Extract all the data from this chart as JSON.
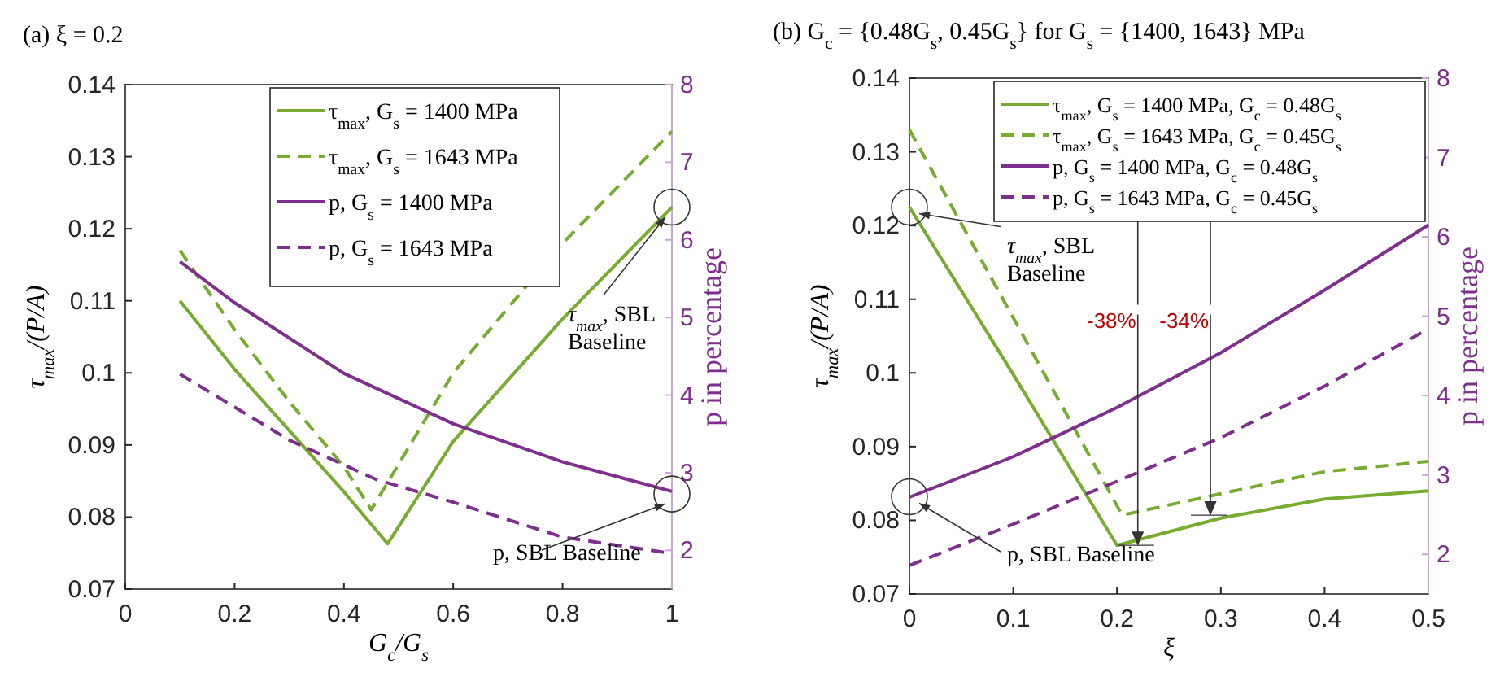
{
  "chart_data": [
    {
      "type": "line",
      "title": "(a) ξ = 0.2",
      "xlabel": "G$_{c}$/G$_{s}$",
      "ylabel": "τ$_{max}$/(P/A)",
      "y2label": "p in percentage",
      "xlim": [
        0,
        1
      ],
      "xticks": [
        0,
        0.2,
        0.4,
        0.6,
        0.8,
        1
      ],
      "ylim": [
        0.07,
        0.14
      ],
      "yticks": [
        0.07,
        0.08,
        0.09,
        0.1,
        0.11,
        0.12,
        0.13,
        0.14
      ],
      "y2lim": [
        1.5,
        8
      ],
      "y2ticks": [
        2,
        3,
        4,
        5,
        6,
        7,
        8
      ],
      "grid": false,
      "legend": "top",
      "marker": "none",
      "series": [
        {
          "name": "τ$_{max}$, G$_{s}$ = 1400 MPa",
          "color": "#77ac30",
          "line_style": "solid",
          "x": [
            0.1,
            0.2,
            0.3,
            0.4,
            0.48,
            0.6,
            0.8,
            1
          ],
          "values": [
            0.11,
            0.1005,
            0.092,
            0.0835,
            0.0763,
            0.0905,
            0.1075,
            0.123
          ]
        },
        {
          "name": "τ$_{max}$, G$_{s}$ = 1643 MPa",
          "color": "#77ac30",
          "line_style": "dashed",
          "x": [
            0.1,
            0.2,
            0.3,
            0.4,
            0.45,
            0.6,
            0.8,
            1
          ],
          "values": [
            0.117,
            0.106,
            0.096,
            0.087,
            0.081,
            0.1,
            0.118,
            0.1335
          ]
        },
        {
          "name": "p, G$_{s}$ = 1400 MPa",
          "color": "#7e2f8e",
          "line_style": "solid",
          "axis": "y2",
          "x": [
            0.1,
            0.2,
            0.4,
            0.6,
            0.8,
            1
          ],
          "values": [
            5.72,
            5.19,
            4.28,
            3.63,
            3.14,
            2.76
          ]
        },
        {
          "name": "p, G$_{s}$ = 1643 MPa",
          "color": "#7e2f8e",
          "line_style": "dashed",
          "axis": "y2",
          "x": [
            0.1,
            0.3,
            0.46,
            0.6,
            0.8,
            1
          ],
          "values": [
            4.27,
            3.42,
            2.91,
            2.62,
            2.17,
            1.96
          ]
        }
      ],
      "annotations": [
        {
          "text": "τ$_{max}$, SBL Baseline",
          "x": 1,
          "y": 0.123
        },
        {
          "text": "p, SBL Baseline",
          "x": 1,
          "y": 0.0832
        }
      ]
    },
    {
      "type": "line",
      "title": "(b) G$_{c}$ = {0.48G$_{s}$, 0.45G$_{s}$} for G$_{s}$ = {1400, 1643} MPa",
      "xlabel": "ξ",
      "ylabel": "τ$_{max}$/(P/A)",
      "y2label": "p in percentage",
      "xlim": [
        0,
        0.5
      ],
      "xticks": [
        0,
        0.1,
        0.2,
        0.3,
        0.4,
        0.5
      ],
      "ylim": [
        0.07,
        0.14
      ],
      "yticks": [
        0.07,
        0.08,
        0.09,
        0.1,
        0.11,
        0.12,
        0.13,
        0.14
      ],
      "y2lim": [
        1.5,
        8
      ],
      "y2ticks": [
        2,
        3,
        4,
        5,
        6,
        7,
        8
      ],
      "grid": false,
      "legend": "top right",
      "marker": "none",
      "series": [
        {
          "name": "τ$_{max}$, G$_{s}$ = 1400 MPa, G$_{c}$ = 0.48G$_{s}$",
          "color": "#77ac30",
          "line_style": "solid",
          "x": [
            0,
            0.1,
            0.2,
            0.3,
            0.4,
            0.5
          ],
          "values": [
            0.1225,
            0.0998,
            0.0766,
            0.0803,
            0.0829,
            0.084
          ]
        },
        {
          "name": "τ$_{max}$, G$_{s}$ = 1643 MPa, G$_{c}$ = 0.45G$_{s}$",
          "color": "#77ac30",
          "line_style": "dashed",
          "x": [
            0,
            0.205,
            0.3,
            0.4,
            0.5
          ],
          "values": [
            0.133,
            0.0807,
            0.0836,
            0.0866,
            0.088
          ]
        },
        {
          "name": "p, G$_{s}$ = 1400 MPa, G$_{c}$ = 0.48G$_{s}$",
          "color": "#7e2f8e",
          "line_style": "solid",
          "axis": "y2",
          "x": [
            0,
            0.1,
            0.2,
            0.3,
            0.4,
            0.5
          ],
          "values": [
            2.72,
            3.23,
            3.85,
            4.54,
            5.33,
            6.15
          ]
        },
        {
          "name": "p, G$_{s}$ = 1643 MPa, G$_{c}$ = 0.45G$_{s}$",
          "color": "#7e2f8e",
          "line_style": "dashed",
          "axis": "y2",
          "x": [
            0,
            0.1,
            0.2,
            0.3,
            0.4,
            0.5
          ],
          "values": [
            1.86,
            2.38,
            2.92,
            3.47,
            4.12,
            4.84
          ]
        }
      ],
      "annotations": [
        {
          "text": "τ$_{max}$, SBL Baseline",
          "x": 0,
          "y": 0.1225
        },
        {
          "text": "p, SBL Baseline",
          "x": 0,
          "y": 0.0832
        },
        {
          "text": "-38%",
          "x": 0.22,
          "y": 0.0766
        },
        {
          "text": "-34%",
          "x": 0.29,
          "y": 0.0807
        }
      ]
    }
  ]
}
